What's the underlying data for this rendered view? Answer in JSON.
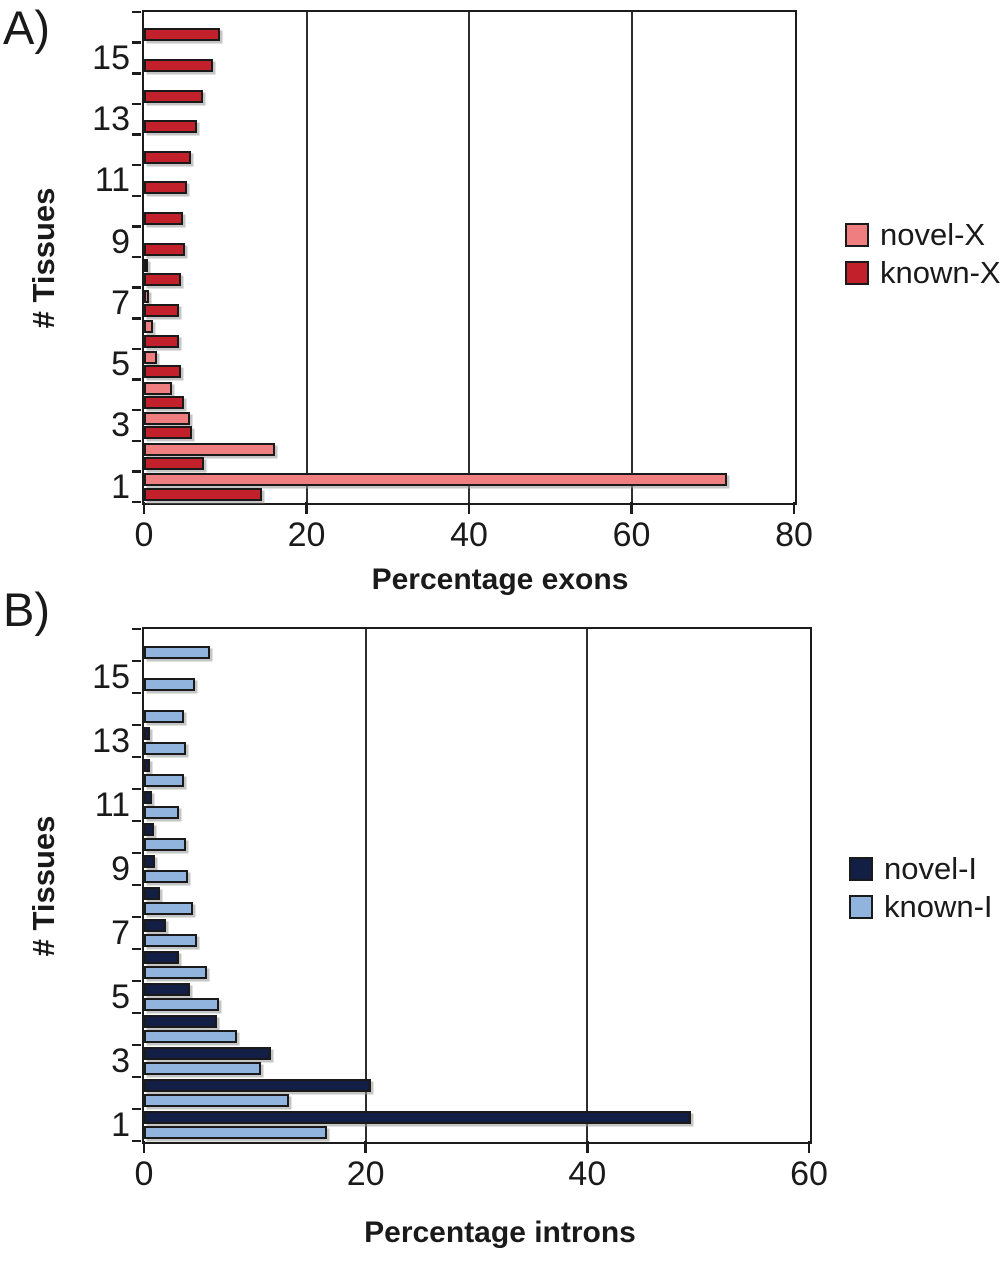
{
  "figure": {
    "background": "#ffffff",
    "description_visible_text_only": true
  },
  "chart_data": [
    {
      "type": "bar",
      "orientation": "horizontal",
      "panel_label": "A)",
      "xlabel": "Percentage exons",
      "ylabel": "# Tissues",
      "xlim": [
        0,
        80
      ],
      "x_ticks": [
        0,
        20,
        40,
        60,
        80
      ],
      "gridlines_x": [
        20,
        40,
        60
      ],
      "categories": [
        1,
        2,
        3,
        4,
        5,
        6,
        7,
        8,
        9,
        10,
        11,
        12,
        13,
        14,
        15,
        16
      ],
      "y_tick_labels": [
        15,
        13,
        11,
        9,
        7,
        5,
        3,
        1
      ],
      "legend_position": "right",
      "series": [
        {
          "name": "novel-X",
          "color": "#ee7e80",
          "values": [
            71.5,
            15.9,
            5.4,
            3.2,
            1.4,
            0.8,
            0.4,
            0.3,
            0,
            0,
            0,
            0,
            0,
            0,
            0,
            0
          ]
        },
        {
          "name": "known-X",
          "color": "#c2202a",
          "values": [
            14.3,
            7.1,
            5.6,
            4.7,
            4.3,
            4.1,
            4.1,
            4.3,
            4.8,
            4.5,
            5.0,
            5.5,
            6.3,
            7.0,
            8.3,
            9.1
          ]
        }
      ]
    },
    {
      "type": "bar",
      "orientation": "horizontal",
      "panel_label": "B)",
      "xlabel": "Percentage introns",
      "ylabel": "# Tissues",
      "xlim": [
        0,
        60
      ],
      "x_ticks": [
        0,
        20,
        40,
        60
      ],
      "gridlines_x": [
        20,
        40
      ],
      "categories": [
        1,
        2,
        3,
        4,
        5,
        6,
        7,
        8,
        9,
        10,
        11,
        12,
        13,
        14,
        15,
        16
      ],
      "y_tick_labels": [
        15,
        13,
        11,
        9,
        7,
        5,
        3,
        1
      ],
      "legend_position": "right",
      "series": [
        {
          "name": "novel-I",
          "color": "#131e44",
          "values": [
            49.2,
            20.3,
            11.3,
            6.4,
            4.0,
            3.0,
            1.8,
            1.3,
            0.8,
            0.7,
            0.5,
            0.4,
            0.4,
            0,
            0,
            0
          ]
        },
        {
          "name": "known-I",
          "color": "#90b4de",
          "values": [
            16.3,
            12.9,
            10.4,
            8.2,
            6.6,
            5.5,
            4.6,
            4.2,
            3.8,
            3.6,
            3.0,
            3.4,
            3.6,
            3.4,
            4.4,
            5.8
          ]
        }
      ]
    }
  ]
}
